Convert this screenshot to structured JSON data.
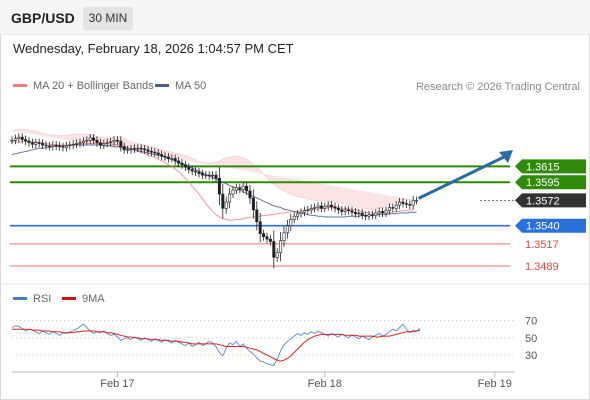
{
  "header": {
    "pair": "GBP/USD",
    "timeframe": "30 MIN",
    "date": "Wednesday, February 18, 2026 1:04:57 PM CET"
  },
  "colors": {
    "bullish": "#2f8a07",
    "bearish": "#e04848",
    "pivot": "#2a6fdb",
    "price_tag": "#333333",
    "ma20": "#f08080",
    "ma50": "#4a5d8f",
    "band": "#fde0e0",
    "rsi": "#4a7ac8",
    "rsi_ma": "#d01010",
    "arrow": "#2a6aa8"
  },
  "chart_data": [
    {
      "type": "candlestick",
      "legend": [
        {
          "name": "MA 20 + Bollinger Bands",
          "color": "#f08080"
        },
        {
          "name": "MA 50",
          "color": "#4a5d8f"
        }
      ],
      "credit": "Research © 2026 Trading Central",
      "ylim": [
        1.3465,
        1.368
      ],
      "x_ticks": [
        {
          "label": "Feb 17",
          "index": 31
        },
        {
          "label": "Feb 18",
          "index": 92
        },
        {
          "label": "Feb 19",
          "index": 142
        }
      ],
      "bars": 154,
      "levels": [
        {
          "label": "1.3615",
          "value": 1.3615,
          "type": "resistance"
        },
        {
          "label": "1.3595",
          "value": 1.3595,
          "type": "resistance"
        },
        {
          "label": "1.3572",
          "value": 1.3572,
          "type": "last"
        },
        {
          "label": "1.3540",
          "value": 1.354,
          "type": "pivot"
        },
        {
          "label": "1.3517",
          "value": 1.3517,
          "type": "support"
        },
        {
          "label": "1.3489",
          "value": 1.3489,
          "type": "support"
        }
      ],
      "close": [
        1.3648,
        1.365,
        1.3652,
        1.3649,
        1.3647,
        1.3645,
        1.3643,
        1.3645,
        1.3644,
        1.3642,
        1.3641,
        1.364,
        1.3642,
        1.3641,
        1.364,
        1.3639,
        1.3641,
        1.3642,
        1.3643,
        1.3644,
        1.3645,
        1.3647,
        1.3648,
        1.3651,
        1.3648,
        1.3645,
        1.3642,
        1.3644,
        1.3645,
        1.3646,
        1.3648,
        1.3647,
        1.364,
        1.3636,
        1.3636,
        1.3637,
        1.3638,
        1.3638,
        1.3637,
        1.3636,
        1.3634,
        1.3633,
        1.3632,
        1.363,
        1.3628,
        1.3627,
        1.3625,
        1.3625,
        1.3622,
        1.3619,
        1.3617,
        1.3614,
        1.3611,
        1.3609,
        1.3608,
        1.3606,
        1.3604,
        1.3604,
        1.3603,
        1.3604,
        1.36,
        1.358,
        1.3562,
        1.357,
        1.358,
        1.3585,
        1.3588,
        1.3586,
        1.359,
        1.3584,
        1.3575,
        1.356,
        1.3545,
        1.353,
        1.3526,
        1.3523,
        1.352,
        1.35,
        1.3506,
        1.3521,
        1.3531,
        1.354,
        1.3548,
        1.3552,
        1.3555,
        1.3557,
        1.3559,
        1.356,
        1.3562,
        1.3563,
        1.3565,
        1.3562,
        1.3564,
        1.3566,
        1.3564,
        1.3562,
        1.356,
        1.3558,
        1.356,
        1.3559,
        1.3557,
        1.3555,
        1.3556,
        1.3553,
        1.3552,
        1.3554,
        1.3553,
        1.3556,
        1.3558,
        1.3556,
        1.3559,
        1.3563,
        1.3562,
        1.3566,
        1.357,
        1.3568,
        1.3567,
        1.3566,
        1.3572,
        1.3572
      ],
      "ma20": [
        1.3646,
        1.3646,
        1.3646,
        1.3647,
        1.3647,
        1.3647,
        1.3646,
        1.3646,
        1.3645,
        1.3645,
        1.3644,
        1.3643,
        1.3642,
        1.3642,
        1.3642,
        1.3642,
        1.3642,
        1.3642,
        1.3643,
        1.3643,
        1.3643,
        1.3644,
        1.3644,
        1.3644,
        1.3644,
        1.3644,
        1.3644,
        1.3644,
        1.3644,
        1.3643,
        1.3643,
        1.3642,
        1.3641,
        1.364,
        1.3639,
        1.3637,
        1.3636,
        1.3634,
        1.3633,
        1.3631,
        1.3629,
        1.3628,
        1.3626,
        1.3624,
        1.3622,
        1.362,
        1.3617,
        1.3615,
        1.3612,
        1.3608,
        1.3604,
        1.36,
        1.3595,
        1.359,
        1.3585,
        1.358,
        1.3574,
        1.3568,
        1.3563,
        1.3558,
        1.3554,
        1.3551,
        1.3549,
        1.3548,
        1.3547,
        1.3547,
        1.3548,
        1.3548,
        1.3549,
        1.355,
        1.355,
        1.3551,
        1.3552,
        1.3552,
        1.3553,
        1.3553,
        1.3554,
        1.3554,
        1.3555,
        1.3556,
        1.3556,
        1.3557,
        1.3557,
        1.3558,
        1.3558,
        1.3559,
        1.3559,
        1.356,
        1.356,
        1.3561,
        1.3561,
        1.3562,
        1.3562,
        1.3563,
        1.3563,
        1.3563,
        1.3563,
        1.3562,
        1.3562,
        1.3561,
        1.3561,
        1.356,
        1.3559,
        1.3558,
        1.3557,
        1.3556,
        1.3556,
        1.3555,
        1.3556,
        1.3556,
        1.3556,
        1.3557,
        1.3557,
        1.3558,
        1.3558,
        1.3559,
        1.3559,
        1.356,
        1.356
      ],
      "bb_upper": [
        1.366,
        1.3661,
        1.3662,
        1.3662,
        1.3662,
        1.3661,
        1.366,
        1.3659,
        1.3658,
        1.3657,
        1.3656,
        1.3655,
        1.3655,
        1.3654,
        1.3654,
        1.3654,
        1.3654,
        1.3655,
        1.3656,
        1.3656,
        1.3656,
        1.3656,
        1.3656,
        1.3655,
        1.3654,
        1.3653,
        1.3652,
        1.3651,
        1.3651,
        1.3651,
        1.3652,
        1.3653,
        1.3652,
        1.365,
        1.3648,
        1.3646,
        1.3645,
        1.3644,
        1.3643,
        1.3642,
        1.3641,
        1.364,
        1.3639,
        1.3637,
        1.3636,
        1.3635,
        1.3634,
        1.3633,
        1.3632,
        1.3631,
        1.363,
        1.3629,
        1.3627,
        1.3625,
        1.3623,
        1.3621,
        1.362,
        1.3619,
        1.3619,
        1.362,
        1.3621,
        1.3622,
        1.3624,
        1.3626,
        1.3627,
        1.3628,
        1.3628,
        1.3627,
        1.3626,
        1.3624,
        1.3621,
        1.3618,
        1.3614,
        1.361,
        1.3605,
        1.36,
        1.3595,
        1.3592,
        1.3589,
        1.3586,
        1.3584,
        1.3582,
        1.358,
        1.3578,
        1.3577,
        1.3576,
        1.3575,
        1.3574,
        1.3573,
        1.3572,
        1.3572,
        1.3571,
        1.3571,
        1.357,
        1.357,
        1.3569,
        1.3569,
        1.3568,
        1.3567,
        1.3566,
        1.3565,
        1.3564,
        1.3563,
        1.3562,
        1.3562,
        1.3561,
        1.3561,
        1.3561,
        1.3562,
        1.3563,
        1.3565,
        1.3567,
        1.3569,
        1.3571,
        1.3572,
        1.3573,
        1.3573,
        1.3573,
        1.3573
      ],
      "bb_lower": [
        1.3632,
        1.3631,
        1.363,
        1.3631,
        1.3632,
        1.3633,
        1.3633,
        1.3633,
        1.3633,
        1.3633,
        1.3632,
        1.3631,
        1.363,
        1.363,
        1.363,
        1.363,
        1.363,
        1.363,
        1.363,
        1.363,
        1.363,
        1.3631,
        1.3632,
        1.3633,
        1.3634,
        1.3635,
        1.3636,
        1.3637,
        1.3637,
        1.3636,
        1.3634,
        1.3632,
        1.363,
        1.3629,
        1.3627,
        1.3625,
        1.3622,
        1.362,
        1.3617,
        1.3614,
        1.3611,
        1.3609,
        1.3606,
        1.3603,
        1.3601,
        1.3599,
        1.3597,
        1.3595,
        1.3593,
        1.359,
        1.3587,
        1.3583,
        1.3578,
        1.3572,
        1.3565,
        1.3557,
        1.3548,
        1.3538,
        1.3528,
        1.3518,
        1.351,
        1.3503,
        1.3497,
        1.3493,
        1.3491,
        1.349,
        1.3491,
        1.3493,
        1.3496,
        1.35,
        1.3504,
        1.3509,
        1.3513,
        1.3517,
        1.3521,
        1.3524,
        1.3527,
        1.3529,
        1.3531,
        1.3533,
        1.3535,
        1.3536,
        1.3537,
        1.3538,
        1.3539,
        1.354,
        1.3541,
        1.3542,
        1.3543,
        1.3544,
        1.3545,
        1.3546,
        1.3547,
        1.3548,
        1.3549,
        1.355,
        1.355,
        1.355,
        1.3549,
        1.3549,
        1.3549,
        1.3548,
        1.3548,
        1.3547,
        1.3547,
        1.3546,
        1.3546,
        1.3545,
        1.3545,
        1.3544,
        1.3543,
        1.3543,
        1.3542,
        1.3542,
        1.3542,
        1.3542,
        1.3543,
        1.3544,
        1.3545,
        1.3546,
        1.3547
      ],
      "ma50": [
        1.363,
        1.3631,
        1.3632,
        1.3633,
        1.3634,
        1.3635,
        1.3636,
        1.3637,
        1.3638,
        1.3638,
        1.3639,
        1.3639,
        1.364,
        1.364,
        1.3641,
        1.3641,
        1.3641,
        1.3642,
        1.3642,
        1.3642,
        1.3642,
        1.3642,
        1.3642,
        1.3642,
        1.3642,
        1.3642,
        1.3642,
        1.3641,
        1.3641,
        1.3641,
        1.364,
        1.364,
        1.3639,
        1.3638,
        1.3638,
        1.3637,
        1.3636,
        1.3635,
        1.3634,
        1.3633,
        1.3632,
        1.3631,
        1.363,
        1.3629,
        1.3628,
        1.3626,
        1.3625,
        1.3624,
        1.3622,
        1.362,
        1.3619,
        1.3617,
        1.3615,
        1.3613,
        1.3611,
        1.3609,
        1.3607,
        1.3605,
        1.3603,
        1.3601,
        1.3599,
        1.3597,
        1.3595,
        1.3593,
        1.3591,
        1.3589,
        1.3587,
        1.3585,
        1.3583,
        1.3581,
        1.3579,
        1.3577,
        1.3575,
        1.3573,
        1.3571,
        1.3569,
        1.3567,
        1.3565,
        1.3564,
        1.3563,
        1.3561,
        1.356,
        1.3559,
        1.3558,
        1.3557,
        1.3556,
        1.3555,
        1.3554,
        1.3553,
        1.3553,
        1.3552,
        1.3552,
        1.3551,
        1.3551,
        1.3551,
        1.3551,
        1.3551,
        1.3551,
        1.3551,
        1.3552,
        1.3552,
        1.3552,
        1.3552,
        1.3553,
        1.3553,
        1.3553,
        1.3553,
        1.3554,
        1.3554,
        1.3554,
        1.3554,
        1.3555,
        1.3555,
        1.3555,
        1.3556,
        1.3556,
        1.3556,
        1.3557,
        1.3557,
        1.3557
      ]
    },
    {
      "type": "line",
      "legend": [
        {
          "name": "RSI",
          "color": "#4a7ac8"
        },
        {
          "name": "9MA",
          "color": "#d01010"
        }
      ],
      "ylim": [
        15,
        80
      ],
      "y_ticks": [
        "70",
        "50",
        "30"
      ],
      "rsi": [
        62,
        64,
        63,
        61,
        58,
        60,
        59,
        57,
        55,
        58,
        56,
        54,
        57,
        55,
        53,
        56,
        55,
        57,
        58,
        60,
        63,
        66,
        62,
        58,
        55,
        57,
        56,
        58,
        55,
        53,
        54,
        51,
        47,
        49,
        50,
        48,
        51,
        49,
        47,
        50,
        48,
        46,
        49,
        47,
        45,
        48,
        46,
        44,
        47,
        45,
        43,
        41,
        44,
        40,
        42,
        45,
        41,
        43,
        46,
        44,
        40,
        33,
        29,
        38,
        44,
        42,
        46,
        40,
        43,
        38,
        34,
        31,
        27,
        23,
        22,
        20,
        19,
        18,
        25,
        35,
        42,
        46,
        49,
        52,
        55,
        53,
        56,
        54,
        57,
        55,
        58,
        56,
        54,
        52,
        55,
        53,
        51,
        54,
        52,
        50,
        53,
        51,
        49,
        52,
        50,
        48,
        51,
        53,
        55,
        52,
        54,
        57,
        60,
        58,
        62,
        66,
        60,
        56,
        59,
        58,
        61
      ],
      "ma9": [
        60,
        60,
        60,
        60,
        60,
        60,
        59,
        59,
        59,
        58,
        58,
        58,
        57,
        57,
        57,
        56,
        56,
        56,
        56,
        57,
        57,
        58,
        58,
        58,
        58,
        57,
        57,
        57,
        56,
        56,
        55,
        54,
        53,
        52,
        51,
        51,
        50,
        50,
        49,
        49,
        49,
        48,
        48,
        48,
        47,
        47,
        47,
        46,
        46,
        46,
        45,
        45,
        44,
        43,
        43,
        43,
        43,
        43,
        43,
        43,
        43,
        42,
        41,
        40,
        40,
        40,
        40,
        40,
        40,
        39,
        38,
        37,
        36,
        34,
        32,
        30,
        28,
        26,
        24,
        23,
        24,
        26,
        29,
        33,
        37,
        41,
        45,
        48,
        50,
        52,
        53,
        54,
        54,
        54,
        54,
        54,
        54,
        54,
        53,
        53,
        53,
        53,
        52,
        52,
        52,
        52,
        52,
        51,
        51,
        52,
        52,
        52,
        53,
        54,
        55,
        56,
        57,
        57,
        57,
        58,
        59
      ]
    }
  ]
}
